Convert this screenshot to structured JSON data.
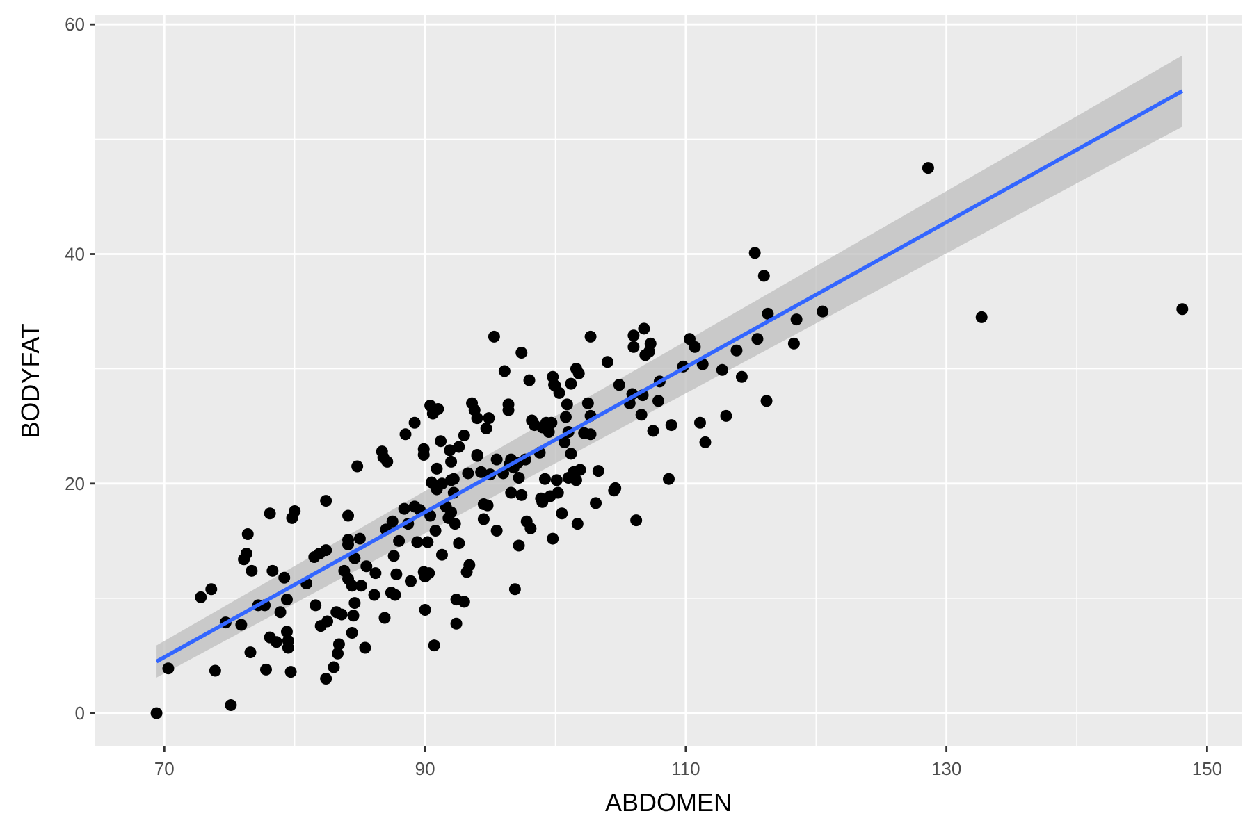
{
  "chart_data": {
    "type": "scatter",
    "title": "",
    "xlabel": "ABDOMEN",
    "ylabel": "BODYFAT",
    "xlim": [
      64.7,
      152.7
    ],
    "ylim": [
      -2.9,
      60.8
    ],
    "x_ticks": [
      70,
      90,
      110,
      130,
      150
    ],
    "x_minor_ticks": [
      80,
      100,
      120,
      140
    ],
    "y_ticks": [
      0,
      20,
      40,
      60
    ],
    "y_minor_ticks": [
      10,
      30,
      50
    ],
    "x_tick_labels": [
      "70",
      "90",
      "110",
      "130",
      "150"
    ],
    "y_tick_labels": [
      "0",
      "20",
      "40",
      "60"
    ],
    "grid": true,
    "colors": {
      "panel_background": "#ebebeb",
      "grid": "#ffffff",
      "points": "#000000",
      "fit_line": "#3366ff",
      "confidence_band": "#bdbdbd"
    },
    "fit": {
      "method": "linear regression",
      "x": [
        69.4,
        148.1
      ],
      "y": [
        4.5,
        54.2
      ],
      "band_lower": [
        3.1,
        51.1
      ],
      "band_upper": [
        5.9,
        57.3
      ]
    },
    "series": [
      {
        "points": [
          [
            69.4,
            0.0
          ],
          [
            70.3,
            3.9
          ],
          [
            72.8,
            10.1
          ],
          [
            73.6,
            10.8
          ],
          [
            73.9,
            3.7
          ],
          [
            74.7,
            7.9
          ],
          [
            75.1,
            0.7
          ],
          [
            75.9,
            7.7
          ],
          [
            76.1,
            13.4
          ],
          [
            76.3,
            13.9
          ],
          [
            76.4,
            15.6
          ],
          [
            76.6,
            5.3
          ],
          [
            76.7,
            12.4
          ],
          [
            77.2,
            9.4
          ],
          [
            77.7,
            9.4
          ],
          [
            77.8,
            3.8
          ],
          [
            78.1,
            17.4
          ],
          [
            78.1,
            6.6
          ],
          [
            78.3,
            12.4
          ],
          [
            78.6,
            6.2
          ],
          [
            78.9,
            8.8
          ],
          [
            79.2,
            11.8
          ],
          [
            79.4,
            9.9
          ],
          [
            79.4,
            7.1
          ],
          [
            79.5,
            6.3
          ],
          [
            79.5,
            5.7
          ],
          [
            79.7,
            3.6
          ],
          [
            79.8,
            17.0
          ],
          [
            80.0,
            17.6
          ],
          [
            80.9,
            11.3
          ],
          [
            81.5,
            13.6
          ],
          [
            81.6,
            9.4
          ],
          [
            81.9,
            13.9
          ],
          [
            82.0,
            7.6
          ],
          [
            82.4,
            18.5
          ],
          [
            82.4,
            14.2
          ],
          [
            82.4,
            3.0
          ],
          [
            82.5,
            8.0
          ],
          [
            83.0,
            4.0
          ],
          [
            83.2,
            8.8
          ],
          [
            83.3,
            5.2
          ],
          [
            83.4,
            6.0
          ],
          [
            83.6,
            8.6
          ],
          [
            83.8,
            12.4
          ],
          [
            84.1,
            11.7
          ],
          [
            84.1,
            14.7
          ],
          [
            84.1,
            15.1
          ],
          [
            84.1,
            17.2
          ],
          [
            84.4,
            11.1
          ],
          [
            84.4,
            7.0
          ],
          [
            84.5,
            8.5
          ],
          [
            84.6,
            13.5
          ],
          [
            84.6,
            9.6
          ],
          [
            84.8,
            21.5
          ],
          [
            85.0,
            15.2
          ],
          [
            85.1,
            11.1
          ],
          [
            85.4,
            5.7
          ],
          [
            85.5,
            12.8
          ],
          [
            86.1,
            10.3
          ],
          [
            86.2,
            12.2
          ],
          [
            86.7,
            22.8
          ],
          [
            86.8,
            22.3
          ],
          [
            86.9,
            8.3
          ],
          [
            87.0,
            16.0
          ],
          [
            87.1,
            21.9
          ],
          [
            87.4,
            10.5
          ],
          [
            87.5,
            16.7
          ],
          [
            87.6,
            13.7
          ],
          [
            87.7,
            10.3
          ],
          [
            87.8,
            12.1
          ],
          [
            88.0,
            15.0
          ],
          [
            88.4,
            17.8
          ],
          [
            88.5,
            24.3
          ],
          [
            88.7,
            16.5
          ],
          [
            88.9,
            11.5
          ],
          [
            89.2,
            18.0
          ],
          [
            89.2,
            25.3
          ],
          [
            89.4,
            14.9
          ],
          [
            89.6,
            17.7
          ],
          [
            89.9,
            12.3
          ],
          [
            89.9,
            23.0
          ],
          [
            89.9,
            22.5
          ],
          [
            90.0,
            11.9
          ],
          [
            90.0,
            9.0
          ],
          [
            90.2,
            14.9
          ],
          [
            90.3,
            12.2
          ],
          [
            90.4,
            17.2
          ],
          [
            90.4,
            26.8
          ],
          [
            90.5,
            20.1
          ],
          [
            90.6,
            26.1
          ],
          [
            90.7,
            5.9
          ],
          [
            90.8,
            15.9
          ],
          [
            90.9,
            19.5
          ],
          [
            90.9,
            21.3
          ],
          [
            91.0,
            26.5
          ],
          [
            91.2,
            23.7
          ],
          [
            91.3,
            20.0
          ],
          [
            91.3,
            13.8
          ],
          [
            91.6,
            18.0
          ],
          [
            91.8,
            17.0
          ],
          [
            91.9,
            22.9
          ],
          [
            92.0,
            20.3
          ],
          [
            92.0,
            21.9
          ],
          [
            92.0,
            17.5
          ],
          [
            92.2,
            20.4
          ],
          [
            92.2,
            19.2
          ],
          [
            92.3,
            16.5
          ],
          [
            92.4,
            9.9
          ],
          [
            92.4,
            7.8
          ],
          [
            92.6,
            23.2
          ],
          [
            92.6,
            14.8
          ],
          [
            93.0,
            24.2
          ],
          [
            93.0,
            9.7
          ],
          [
            93.2,
            12.3
          ],
          [
            93.3,
            20.9
          ],
          [
            93.4,
            12.9
          ],
          [
            93.6,
            27.0
          ],
          [
            93.8,
            26.4
          ],
          [
            94.0,
            25.7
          ],
          [
            94.0,
            22.4
          ],
          [
            94.0,
            22.5
          ],
          [
            94.3,
            21.0
          ],
          [
            94.5,
            16.9
          ],
          [
            94.5,
            18.2
          ],
          [
            94.7,
            24.8
          ],
          [
            94.8,
            18.1
          ],
          [
            94.9,
            25.7
          ],
          [
            95.0,
            20.8
          ],
          [
            95.3,
            32.8
          ],
          [
            95.5,
            22.1
          ],
          [
            95.5,
            15.9
          ],
          [
            96.0,
            20.9
          ],
          [
            96.1,
            29.8
          ],
          [
            96.4,
            26.9
          ],
          [
            96.4,
            26.4
          ],
          [
            96.5,
            21.7
          ],
          [
            96.6,
            19.2
          ],
          [
            96.6,
            22.1
          ],
          [
            96.8,
            21.4
          ],
          [
            96.9,
            10.8
          ],
          [
            97.1,
            21.8
          ],
          [
            97.2,
            20.5
          ],
          [
            97.2,
            14.6
          ],
          [
            97.4,
            19.0
          ],
          [
            97.4,
            31.4
          ],
          [
            97.7,
            22.1
          ],
          [
            97.8,
            16.7
          ],
          [
            98.0,
            29.0
          ],
          [
            98.1,
            16.1
          ],
          [
            98.2,
            25.5
          ],
          [
            98.4,
            25.1
          ],
          [
            98.8,
            22.7
          ],
          [
            98.9,
            18.7
          ],
          [
            99.0,
            24.9
          ],
          [
            99.0,
            18.4
          ],
          [
            99.2,
            20.4
          ],
          [
            99.3,
            25.3
          ],
          [
            99.5,
            24.5
          ],
          [
            99.6,
            18.9
          ],
          [
            99.7,
            25.3
          ],
          [
            99.8,
            29.3
          ],
          [
            99.8,
            15.2
          ],
          [
            99.9,
            28.6
          ],
          [
            100.0,
            28.5
          ],
          [
            100.1,
            20.3
          ],
          [
            100.2,
            19.2
          ],
          [
            100.3,
            27.9
          ],
          [
            100.5,
            17.4
          ],
          [
            100.7,
            23.6
          ],
          [
            100.8,
            25.8
          ],
          [
            100.9,
            26.9
          ],
          [
            101.0,
            20.5
          ],
          [
            101.0,
            24.5
          ],
          [
            101.2,
            22.6
          ],
          [
            101.2,
            28.7
          ],
          [
            101.4,
            21.0
          ],
          [
            101.6,
            30.0
          ],
          [
            101.6,
            20.3
          ],
          [
            101.7,
            16.5
          ],
          [
            101.8,
            29.6
          ],
          [
            101.9,
            21.2
          ],
          [
            102.2,
            24.4
          ],
          [
            102.5,
            27.0
          ],
          [
            102.7,
            32.8
          ],
          [
            102.7,
            25.9
          ],
          [
            102.7,
            24.3
          ],
          [
            103.1,
            18.3
          ],
          [
            103.3,
            21.1
          ],
          [
            104.0,
            30.6
          ],
          [
            104.5,
            19.4
          ],
          [
            104.6,
            19.6
          ],
          [
            104.9,
            28.6
          ],
          [
            105.7,
            27.0
          ],
          [
            105.9,
            27.8
          ],
          [
            106.0,
            32.9
          ],
          [
            106.0,
            31.9
          ],
          [
            106.2,
            16.8
          ],
          [
            106.6,
            26.0
          ],
          [
            106.7,
            27.7
          ],
          [
            106.8,
            33.5
          ],
          [
            106.9,
            31.2
          ],
          [
            107.2,
            31.5
          ],
          [
            107.3,
            32.2
          ],
          [
            107.5,
            24.6
          ],
          [
            107.9,
            27.2
          ],
          [
            108.0,
            28.9
          ],
          [
            108.7,
            20.4
          ],
          [
            108.9,
            25.1
          ],
          [
            109.8,
            30.2
          ],
          [
            110.3,
            32.6
          ],
          [
            110.7,
            31.9
          ],
          [
            111.1,
            25.3
          ],
          [
            111.3,
            30.4
          ],
          [
            111.5,
            23.6
          ],
          [
            112.8,
            29.9
          ],
          [
            113.1,
            25.9
          ],
          [
            113.9,
            31.6
          ],
          [
            114.3,
            29.3
          ],
          [
            115.3,
            40.1
          ],
          [
            115.5,
            32.6
          ],
          [
            116.0,
            38.1
          ],
          [
            116.2,
            27.2
          ],
          [
            116.3,
            34.8
          ],
          [
            118.3,
            32.2
          ],
          [
            118.5,
            34.3
          ],
          [
            120.5,
            35.0
          ],
          [
            128.6,
            47.5
          ],
          [
            132.7,
            34.5
          ],
          [
            148.1,
            35.2
          ]
        ]
      }
    ]
  }
}
